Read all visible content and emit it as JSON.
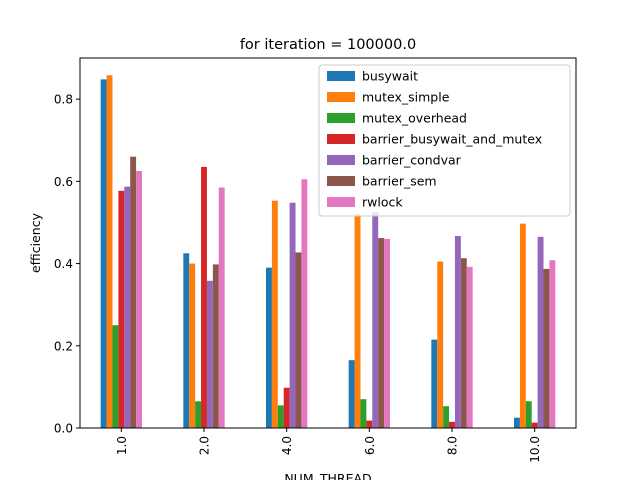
{
  "chart_data": {
    "type": "bar",
    "title": "for iteration = 100000.0",
    "xlabel": "NUM_THREAD",
    "ylabel": "efficiency",
    "categories": [
      "1.0",
      "2.0",
      "4.0",
      "6.0",
      "8.0",
      "10.0"
    ],
    "ylim": [
      0,
      0.9
    ],
    "yticks": [
      0.0,
      0.2,
      0.4,
      0.6,
      0.8
    ],
    "ytick_labels": [
      "0.0",
      "0.2",
      "0.4",
      "0.6",
      "0.8"
    ],
    "grid": false,
    "legend_position": "top-right",
    "series": [
      {
        "name": "busywait",
        "color": "#1f77b4",
        "values": [
          0.848,
          0.425,
          0.39,
          0.165,
          0.215,
          0.025
        ]
      },
      {
        "name": "mutex_simple",
        "color": "#ff7f0e",
        "values": [
          0.858,
          0.4,
          0.553,
          0.52,
          0.405,
          0.497
        ]
      },
      {
        "name": "mutex_overhead",
        "color": "#2ca02c",
        "values": [
          0.25,
          0.065,
          0.055,
          0.07,
          0.053,
          0.065
        ]
      },
      {
        "name": "barrier_busywait_and_mutex",
        "color": "#d62728",
        "values": [
          0.577,
          0.635,
          0.098,
          0.018,
          0.015,
          0.013
        ]
      },
      {
        "name": "barrier_condvar",
        "color": "#9467bd",
        "values": [
          0.587,
          0.358,
          0.548,
          0.525,
          0.467,
          0.465
        ]
      },
      {
        "name": "barrier_sem",
        "color": "#8c564b",
        "values": [
          0.66,
          0.398,
          0.427,
          0.462,
          0.413,
          0.387
        ]
      },
      {
        "name": "rwlock",
        "color": "#e377c2",
        "values": [
          0.625,
          0.585,
          0.605,
          0.46,
          0.392,
          0.408
        ]
      }
    ]
  }
}
